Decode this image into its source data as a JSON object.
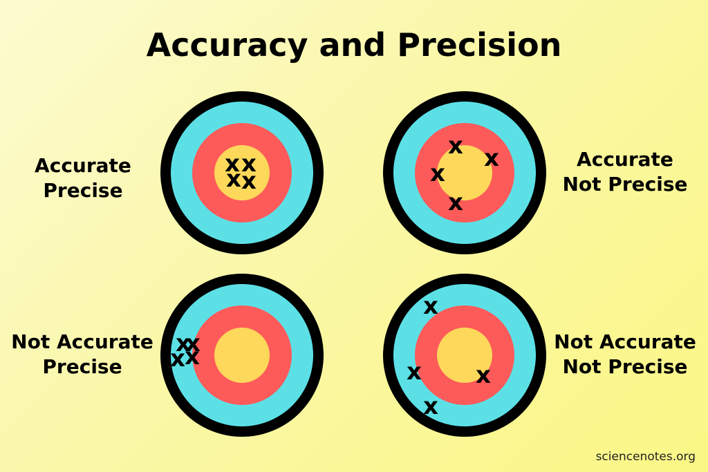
{
  "title": "Accuracy and Precision",
  "colors": {
    "ring_outer": "#000000",
    "ring_cyan": "#5ce0e6",
    "ring_red": "#fd5a5a",
    "bullseye": "#fdd85a"
  },
  "mark_symbol": "x",
  "targets": [
    {
      "id": "accurate-precise",
      "label_lines": [
        "Accurate",
        "Precise"
      ]
    },
    {
      "id": "accurate-not-precise",
      "label_lines": [
        "Accurate",
        "Not Precise"
      ]
    },
    {
      "id": "not-accurate-precise",
      "label_lines": [
        "Not Accurate",
        "Precise"
      ]
    },
    {
      "id": "not-accurate-not-precise",
      "label_lines": [
        "Not Accurate",
        "Not Precise"
      ]
    }
  ],
  "footer": "sciencenotes.org"
}
